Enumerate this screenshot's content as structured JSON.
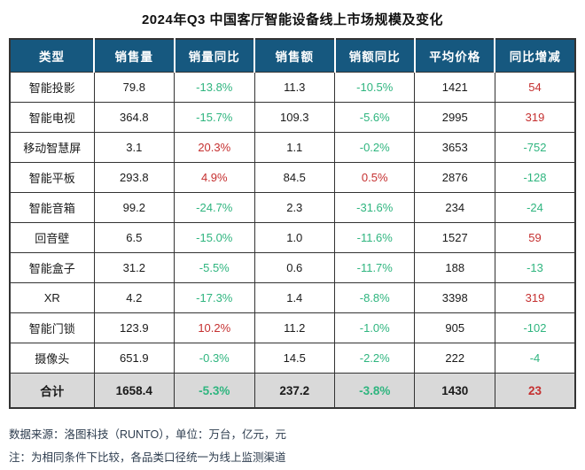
{
  "title": "2024年Q3 中国客厅智能设备线上市场规模及变化",
  "colors": {
    "header_bg": "#16587F",
    "up_red": "#C53030",
    "down_green": "#2FB57F",
    "total_bg": "#D9D9D9",
    "border": "#333333"
  },
  "chart_data": {
    "type": "table",
    "title": "2024年Q3 中国客厅智能设备线上市场规模及变化",
    "columns": [
      "类型",
      "销售量",
      "销量同比",
      "销售额",
      "销额同比",
      "平均价格",
      "同比增减"
    ],
    "rows": [
      [
        "智能投影",
        "79.8",
        "-13.8%",
        "11.3",
        "-10.5%",
        "1421",
        "54"
      ],
      [
        "智能电视",
        "364.8",
        "-15.7%",
        "109.3",
        "-5.6%",
        "2995",
        "319"
      ],
      [
        "移动智慧屏",
        "3.1",
        "20.3%",
        "1.1",
        "-0.2%",
        "3653",
        "-752"
      ],
      [
        "智能平板",
        "293.8",
        "4.9%",
        "84.5",
        "0.5%",
        "2876",
        "-128"
      ],
      [
        "智能音箱",
        "99.2",
        "-24.7%",
        "2.3",
        "-31.6%",
        "234",
        "-24"
      ],
      [
        "回音壁",
        "6.5",
        "-15.0%",
        "1.0",
        "-11.6%",
        "1527",
        "59"
      ],
      [
        "智能盒子",
        "31.2",
        "-5.5%",
        "0.6",
        "-11.7%",
        "188",
        "-13"
      ],
      [
        "XR",
        "4.2",
        "-17.3%",
        "1.4",
        "-8.8%",
        "3398",
        "319"
      ],
      [
        "智能门锁",
        "123.9",
        "10.2%",
        "11.2",
        "-1.0%",
        "905",
        "-102"
      ],
      [
        "摄像头",
        "651.9",
        "-0.3%",
        "14.5",
        "-2.2%",
        "222",
        "-4"
      ]
    ],
    "total_row": [
      "合计",
      "1658.4",
      "-5.3%",
      "237.2",
      "-3.8%",
      "1430",
      "23"
    ],
    "colored_column_indexes": [
      2,
      4,
      6
    ],
    "color_convention": "positive=red, negative=green"
  },
  "table": {
    "headers": [
      "类型",
      "销售量",
      "销量同比",
      "销售额",
      "销额同比",
      "平均价格",
      "同比增减"
    ],
    "rows": [
      [
        "智能投影",
        "79.8",
        "-13.8%",
        "11.3",
        "-10.5%",
        "1421",
        "54"
      ],
      [
        "智能电视",
        "364.8",
        "-15.7%",
        "109.3",
        "-5.6%",
        "2995",
        "319"
      ],
      [
        "移动智慧屏",
        "3.1",
        "20.3%",
        "1.1",
        "-0.2%",
        "3653",
        "-752"
      ],
      [
        "智能平板",
        "293.8",
        "4.9%",
        "84.5",
        "0.5%",
        "2876",
        "-128"
      ],
      [
        "智能音箱",
        "99.2",
        "-24.7%",
        "2.3",
        "-31.6%",
        "234",
        "-24"
      ],
      [
        "回音壁",
        "6.5",
        "-15.0%",
        "1.0",
        "-11.6%",
        "1527",
        "59"
      ],
      [
        "智能盒子",
        "31.2",
        "-5.5%",
        "0.6",
        "-11.7%",
        "188",
        "-13"
      ],
      [
        "XR",
        "4.2",
        "-17.3%",
        "1.4",
        "-8.8%",
        "3398",
        "319"
      ],
      [
        "智能门锁",
        "123.9",
        "10.2%",
        "11.2",
        "-1.0%",
        "905",
        "-102"
      ],
      [
        "摄像头",
        "651.9",
        "-0.3%",
        "14.5",
        "-2.2%",
        "222",
        "-4"
      ]
    ],
    "total_row": [
      "合计",
      "1658.4",
      "-5.3%",
      "237.2",
      "-3.8%",
      "1430",
      "23"
    ]
  },
  "footer": {
    "source": "数据来源：洛图科技（RUNTO），单位：万台，亿元，元",
    "note": "注：为相同条件下比较，各品类口径统一为线上监测渠道"
  }
}
